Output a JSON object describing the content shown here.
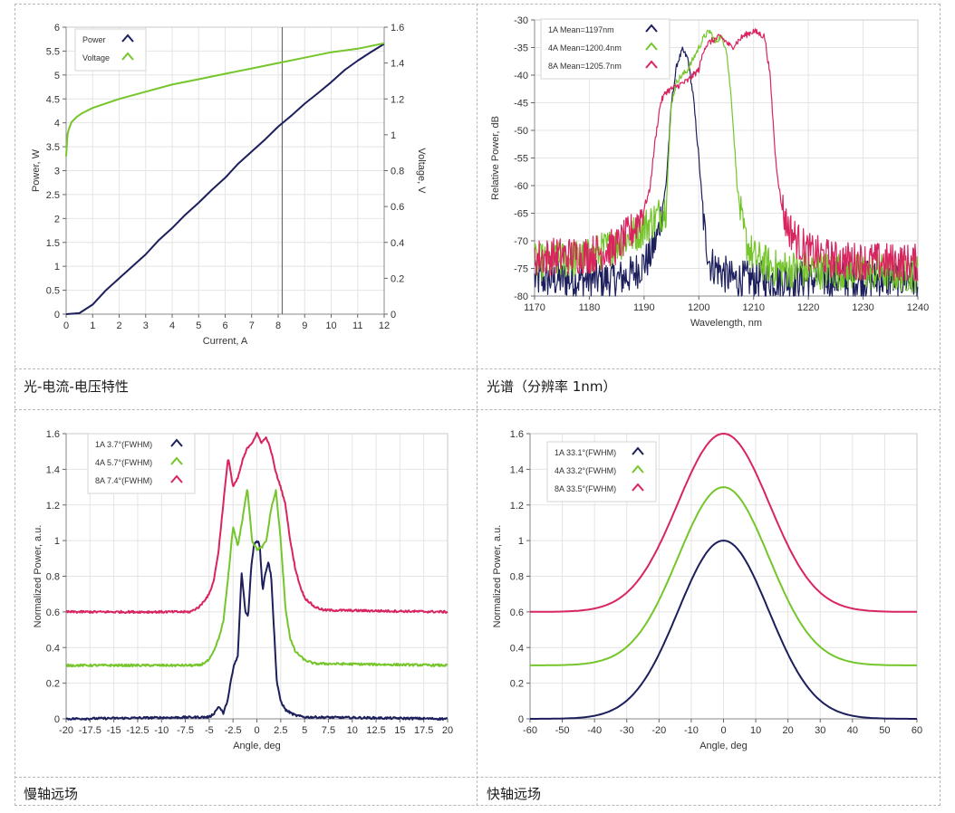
{
  "captions": {
    "liv": "光-电流-电压特性",
    "spectrum": "光谱（分辨率 1nm）",
    "slow_axis": "慢轴远场",
    "fast_axis": "快轴远场"
  },
  "colors": {
    "navy": "#1c1f5c",
    "green": "#74c62b",
    "magenta": "#d8245f"
  },
  "chart_data": [
    {
      "id": "liv",
      "type": "line",
      "title": "",
      "xlabel": "Current, A",
      "ylabel": "Power, W",
      "y2label": "Voltage, V",
      "xlim": [
        0,
        12
      ],
      "ylim": [
        0,
        6
      ],
      "y2lim": [
        0,
        1.6
      ],
      "xticks": [
        "0",
        "1",
        "2",
        "3",
        "4",
        "5",
        "6",
        "7",
        "8",
        "9",
        "10",
        "11",
        "12"
      ],
      "yticks": [
        "0",
        "0.5",
        "1",
        "1.5",
        "2",
        "2.5",
        "3",
        "3.5",
        "4",
        "4.5",
        "5",
        "5.5",
        "6"
      ],
      "y2ticks": [
        "0",
        "0.2",
        "0.4",
        "0.6",
        "0.8",
        "1",
        "1.2",
        "1.4",
        "1.6"
      ],
      "cursor_x": 8.15,
      "legend_position": "top-left",
      "series": [
        {
          "name": "Power",
          "axis": "left",
          "color": "navy",
          "x": [
            0,
            0.5,
            1,
            1.5,
            2,
            2.5,
            3,
            3.5,
            4,
            4.5,
            5,
            5.5,
            6,
            6.5,
            7,
            7.5,
            8,
            8.5,
            9,
            9.5,
            10,
            10.5,
            11,
            11.5,
            12
          ],
          "y": [
            0,
            0.02,
            0.2,
            0.5,
            0.75,
            1.0,
            1.25,
            1.55,
            1.8,
            2.08,
            2.33,
            2.6,
            2.85,
            3.15,
            3.4,
            3.65,
            3.92,
            4.15,
            4.4,
            4.62,
            4.85,
            5.1,
            5.3,
            5.48,
            5.65
          ]
        },
        {
          "name": "Voltage",
          "axis": "right",
          "color": "green",
          "x": [
            0,
            0.05,
            0.1,
            0.2,
            0.4,
            0.6,
            1,
            2,
            3,
            4,
            5,
            6,
            7,
            8,
            9,
            10,
            11,
            12
          ],
          "y": [
            0.88,
            1.0,
            1.03,
            1.07,
            1.1,
            1.12,
            1.15,
            1.2,
            1.24,
            1.28,
            1.31,
            1.34,
            1.37,
            1.4,
            1.43,
            1.46,
            1.48,
            1.51
          ]
        }
      ]
    },
    {
      "id": "spectrum",
      "type": "line",
      "title": "",
      "xlabel": "Wavelength, nm",
      "ylabel": "Relative Power, dB",
      "xlim": [
        1170,
        1240
      ],
      "ylim": [
        -80,
        -30
      ],
      "xticks": [
        "1170",
        "1180",
        "1190",
        "1200",
        "1210",
        "1220",
        "1230",
        "1240"
      ],
      "yticks": [
        "-80",
        "-75",
        "-70",
        "-65",
        "-60",
        "-55",
        "-50",
        "-45",
        "-40",
        "-35",
        "-30"
      ],
      "legend_position": "top-left",
      "series": [
        {
          "name": "1A Mean=1197nm",
          "color": "navy",
          "x": [
            1170,
            1185,
            1188,
            1191,
            1192.5,
            1194,
            1195,
            1196,
            1197,
            1198,
            1199,
            1200,
            1201,
            1202,
            1206,
            1215,
            1240
          ],
          "y": [
            -77,
            -77,
            -76,
            -73,
            -69,
            -60,
            -45,
            -38,
            -35.5,
            -37,
            -44,
            -55,
            -68,
            -74,
            -77,
            -77,
            -77
          ]
        },
        {
          "name": "4A Mean=1200.4nm",
          "color": "green",
          "x": [
            1170,
            1180,
            1184,
            1188,
            1190,
            1192,
            1194,
            1195,
            1196,
            1197,
            1198,
            1199,
            1200,
            1201,
            1202,
            1203,
            1204,
            1205,
            1206,
            1207,
            1208,
            1209,
            1210,
            1214,
            1240
          ],
          "y": [
            -74,
            -73,
            -71,
            -69,
            -67.5,
            -66,
            -64,
            -45,
            -41,
            -40,
            -39,
            -37,
            -35,
            -33,
            -32,
            -34,
            -33,
            -35,
            -45,
            -60,
            -68,
            -71,
            -73,
            -75,
            -76
          ]
        },
        {
          "name": "8A Mean=1205.7nm",
          "color": "magenta",
          "x": [
            1170,
            1180,
            1185,
            1188,
            1190,
            1191,
            1192,
            1193,
            1194,
            1196,
            1198,
            1200,
            1201,
            1202,
            1204,
            1206,
            1208,
            1210,
            1212,
            1213,
            1214,
            1215,
            1216,
            1218,
            1220,
            1225,
            1240
          ],
          "y": [
            -73,
            -72.5,
            -71,
            -68,
            -64,
            -61,
            -52,
            -45,
            -43,
            -42,
            -41,
            -39,
            -35,
            -34,
            -33,
            -35,
            -33,
            -32,
            -33,
            -40,
            -55,
            -63,
            -67,
            -70,
            -72,
            -73.5,
            -74
          ]
        }
      ]
    },
    {
      "id": "slow_axis",
      "type": "line",
      "title": "",
      "xlabel": "Angle, deg",
      "ylabel": "Normalized Power, a.u.",
      "xlim": [
        -20,
        20
      ],
      "ylim": [
        0,
        1.6
      ],
      "xticks": [
        "-20",
        "-17.5",
        "-15",
        "-12.5",
        "-10",
        "-7.5",
        "-5",
        "-2.5",
        "0",
        "2.5",
        "5",
        "7.5",
        "10",
        "12.5",
        "15",
        "17.5",
        "20"
      ],
      "yticks": [
        "0",
        "0.2",
        "0.4",
        "0.6",
        "0.8",
        "1",
        "1.2",
        "1.4",
        "1.6"
      ],
      "legend_position": "top-left",
      "series": [
        {
          "name": "1A 3.7°(FWHM)",
          "color": "navy",
          "x": [
            -20,
            -5,
            -4.5,
            -4,
            -3.5,
            -3,
            -2.7,
            -2.4,
            -2,
            -1.6,
            -1.2,
            -0.9,
            -0.6,
            -0.3,
            0,
            0.3,
            0.6,
            0.9,
            1.2,
            1.5,
            1.8,
            2.1,
            2.5,
            3,
            4,
            5,
            20
          ],
          "y": [
            0,
            0.01,
            0.03,
            0.07,
            0.03,
            0.12,
            0.22,
            0.3,
            0.35,
            0.82,
            0.6,
            0.58,
            0.85,
            0.98,
            1.0,
            0.98,
            0.72,
            0.82,
            0.88,
            0.8,
            0.5,
            0.2,
            0.1,
            0.05,
            0.02,
            0.01,
            0
          ]
        },
        {
          "name": "4A 5.7°(FWHM)",
          "color": "green",
          "x": [
            -20,
            -6,
            -5,
            -4.5,
            -4,
            -3.5,
            -3,
            -2.5,
            -2,
            -1.5,
            -1,
            -0.5,
            0,
            0.5,
            1,
            1.5,
            2,
            2.5,
            3,
            3.5,
            4,
            5,
            6,
            20
          ],
          "y": [
            0.3,
            0.3,
            0.33,
            0.38,
            0.45,
            0.55,
            0.8,
            1.08,
            0.97,
            1.12,
            1.3,
            1.0,
            0.95,
            0.96,
            1.0,
            1.18,
            1.28,
            1.0,
            0.62,
            0.45,
            0.38,
            0.33,
            0.31,
            0.3
          ]
        },
        {
          "name": "8A 7.4°(FWHM)",
          "color": "magenta",
          "x": [
            -20,
            -7,
            -6,
            -5,
            -4.5,
            -4,
            -3.5,
            -3,
            -2.5,
            -2,
            -1.5,
            -1,
            -0.5,
            0,
            0.5,
            1,
            1.5,
            2,
            2.5,
            3,
            3.5,
            4,
            4.5,
            5,
            6,
            7,
            20
          ],
          "y": [
            0.6,
            0.6,
            0.63,
            0.7,
            0.78,
            0.95,
            1.22,
            1.47,
            1.3,
            1.35,
            1.45,
            1.52,
            1.55,
            1.6,
            1.55,
            1.58,
            1.5,
            1.38,
            1.3,
            1.2,
            1.0,
            0.85,
            0.75,
            0.68,
            0.63,
            0.61,
            0.6
          ]
        }
      ]
    },
    {
      "id": "fast_axis",
      "type": "line",
      "title": "",
      "xlabel": "Angle, deg",
      "ylabel": "Normalized Power, a.u.",
      "xlim": [
        -60,
        60
      ],
      "ylim": [
        0,
        1.6
      ],
      "xticks": [
        "-60",
        "-50",
        "-40",
        "-30",
        "-20",
        "-10",
        "0",
        "10",
        "20",
        "30",
        "40",
        "50",
        "60"
      ],
      "yticks": [
        "0",
        "0.2",
        "0.4",
        "0.6",
        "0.8",
        "1",
        "1.2",
        "1.4",
        "1.6"
      ],
      "legend_position": "top-left",
      "series": [
        {
          "name": "1A 33.1°(FWHM)",
          "color": "navy",
          "gauss": {
            "amplitude": 1.0,
            "offset": 0.0,
            "fwhm": 33.1
          }
        },
        {
          "name": "4A 33.2°(FWHM)",
          "color": "green",
          "gauss": {
            "amplitude": 1.0,
            "offset": 0.3,
            "fwhm": 33.2
          }
        },
        {
          "name": "8A 33.5°(FWHM)",
          "color": "magenta",
          "gauss": {
            "amplitude": 1.0,
            "offset": 0.6,
            "fwhm": 33.5
          }
        }
      ]
    }
  ]
}
